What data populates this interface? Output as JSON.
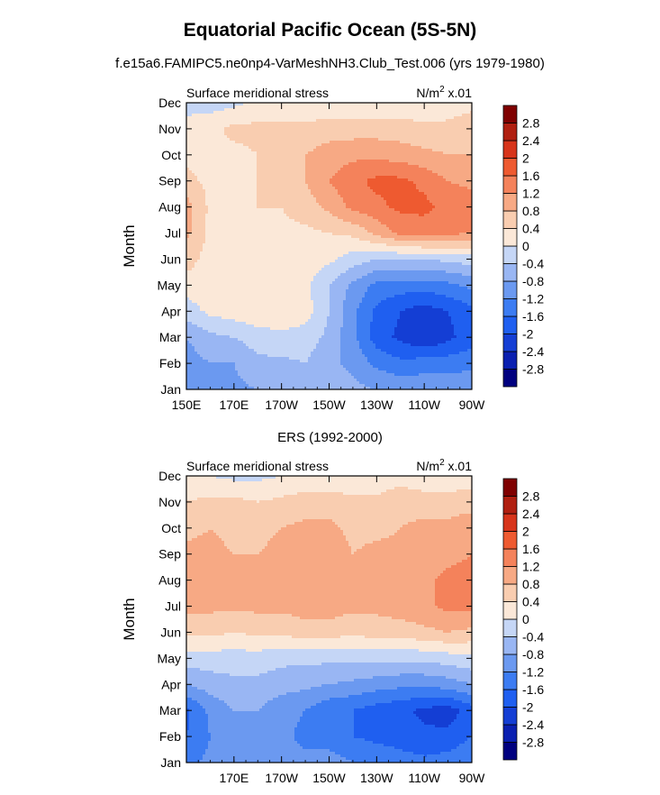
{
  "figure": {
    "title": "Equatorial Pacific Ocean (5S-5N)",
    "subtitle": "f.e15a6.FAMIPC5.ne0np4-VarMeshNH3.Club_Test.006 (yrs 1979-1980)"
  },
  "colorbar": {
    "levels": [
      -2.8,
      -2.4,
      -2,
      -1.6,
      -1.2,
      -0.8,
      -0.4,
      0,
      0.4,
      0.8,
      1.2,
      1.6,
      2,
      2.4,
      2.8
    ],
    "labels": [
      "-2.8",
      "-2.4",
      "-2",
      "-1.6",
      "-1.2",
      "-0.8",
      "-0.4",
      "0",
      "0.4",
      "0.8",
      "1.2",
      "1.6",
      "2",
      "2.4",
      "2.8"
    ],
    "colors": [
      "#00007f",
      "#0a1fb0",
      "#143ed4",
      "#1f5ff0",
      "#3c7cf2",
      "#6b99f0",
      "#99b6f3",
      "#c5d6f6",
      "#fbe8d8",
      "#f9cdb0",
      "#f7a984",
      "#f4825b",
      "#ee5a30",
      "#d7341a",
      "#b01f10",
      "#7f0000"
    ]
  },
  "chart_data": [
    {
      "type": "heatmap",
      "panel_title": "",
      "left_string": "Surface meridional stress",
      "units_base": "N/m",
      "units_exp": "2",
      "units_scale": " x.01",
      "ylabel": "Month",
      "xlim": [
        150,
        270
      ],
      "x": [
        150,
        160,
        170,
        180,
        190,
        200,
        210,
        220,
        230,
        240,
        250,
        260,
        270
      ],
      "x_ticks": [
        150,
        170,
        190,
        210,
        230,
        250,
        270
      ],
      "x_tick_labels": [
        "150E",
        "170E",
        "170W",
        "150W",
        "130W",
        "110W",
        "90W"
      ],
      "y": [
        "Jan",
        "Feb",
        "Mar",
        "Apr",
        "May",
        "Jun",
        "Jul",
        "Aug",
        "Sep",
        "Oct",
        "Nov",
        "Dec"
      ],
      "z": [
        [
          -1.0,
          -1.0,
          -0.9,
          -0.8,
          -0.6,
          -0.4,
          -0.5,
          -0.7,
          -0.8,
          -0.9,
          -0.9,
          -0.9,
          -0.9
        ],
        [
          -1.0,
          -0.8,
          -0.8,
          -0.5,
          -0.5,
          -0.4,
          -0.7,
          -0.9,
          -1.3,
          -1.5,
          -1.4,
          -1.4,
          -1.3
        ],
        [
          -0.8,
          -0.5,
          -0.4,
          -0.2,
          -0.1,
          -0.2,
          -0.5,
          -1.1,
          -1.8,
          -2.1,
          -2.4,
          -2.1,
          -1.8
        ],
        [
          -0.2,
          0.1,
          0.2,
          0.3,
          0.3,
          0.2,
          -0.4,
          -1.1,
          -1.7,
          -2.0,
          -2.2,
          -2.0,
          -1.7
        ],
        [
          0.2,
          0.2,
          0.2,
          0.2,
          0.2,
          0.1,
          -0.4,
          -0.9,
          -1.3,
          -1.4,
          -1.4,
          -1.3,
          -1.1
        ],
        [
          0.6,
          0.2,
          0.2,
          0.2,
          0.2,
          0.2,
          0.1,
          -0.2,
          -0.4,
          -0.4,
          -0.4,
          -0.3,
          -0.2
        ],
        [
          0.9,
          0.3,
          0.3,
          0.3,
          0.3,
          0.3,
          0.4,
          0.5,
          0.9,
          1.3,
          1.4,
          1.3,
          1.2
        ],
        [
          1.0,
          0.3,
          0.3,
          0.4,
          0.4,
          0.6,
          0.9,
          1.3,
          1.5,
          1.7,
          1.7,
          1.5,
          1.4
        ],
        [
          0.5,
          0.3,
          0.3,
          0.4,
          0.5,
          0.8,
          1.2,
          1.5,
          1.7,
          1.7,
          1.5,
          1.2,
          1.1
        ],
        [
          0.3,
          0.3,
          0.3,
          0.4,
          0.6,
          0.8,
          1.0,
          1.1,
          1.1,
          1.0,
          0.9,
          0.8,
          0.8
        ],
        [
          0.2,
          0.3,
          0.5,
          0.5,
          0.5,
          0.5,
          0.6,
          0.6,
          0.6,
          0.6,
          0.5,
          0.5,
          0.6
        ],
        [
          -0.2,
          -0.2,
          -0.1,
          0.1,
          0.1,
          0.1,
          0.1,
          0.1,
          0.1,
          0.1,
          0.1,
          0.2,
          0.3
        ]
      ]
    },
    {
      "type": "heatmap",
      "panel_title": "ERS (1992-2000)",
      "left_string": "Surface meridional stress",
      "units_base": "N/m",
      "units_exp": "2",
      "units_scale": " x.01",
      "ylabel": "Month",
      "xlim": [
        150,
        270
      ],
      "x": [
        150,
        160,
        170,
        180,
        190,
        200,
        210,
        220,
        230,
        240,
        250,
        260,
        270
      ],
      "x_ticks": [
        170,
        190,
        210,
        230,
        250,
        270
      ],
      "x_tick_labels": [
        "170E",
        "170W",
        "150W",
        "130W",
        "110W",
        "90W"
      ],
      "y": [
        "Jan",
        "Feb",
        "Mar",
        "Apr",
        "May",
        "Jun",
        "Jul",
        "Aug",
        "Sep",
        "Oct",
        "Nov",
        "Dec"
      ],
      "z": [
        [
          -1.3,
          -1.1,
          -0.9,
          -0.8,
          -1.0,
          -1.1,
          -1.0,
          -1.2,
          -1.3,
          -1.4,
          -1.5,
          -1.4,
          -1.2
        ],
        [
          -1.6,
          -1.2,
          -1.0,
          -0.9,
          -1.1,
          -1.3,
          -1.4,
          -1.6,
          -1.7,
          -1.8,
          -1.9,
          -1.9,
          -1.6
        ],
        [
          -1.7,
          -1.1,
          -0.8,
          -0.8,
          -1.1,
          -1.2,
          -1.5,
          -1.6,
          -1.8,
          -1.9,
          -2.1,
          -2.2,
          -1.8
        ],
        [
          -0.8,
          -0.6,
          -0.5,
          -0.5,
          -0.6,
          -0.7,
          -0.8,
          -0.9,
          -1.0,
          -1.1,
          -1.1,
          -1.0,
          -0.8
        ],
        [
          -0.2,
          -0.2,
          -0.2,
          -0.2,
          -0.3,
          -0.3,
          -0.3,
          -0.3,
          -0.3,
          -0.3,
          -0.3,
          -0.2,
          -0.1
        ],
        [
          0.5,
          0.5,
          0.4,
          0.5,
          0.5,
          0.6,
          0.6,
          0.5,
          0.6,
          0.6,
          0.7,
          0.8,
          0.7
        ],
        [
          0.9,
          0.9,
          0.9,
          0.9,
          0.9,
          1.0,
          1.0,
          0.9,
          0.9,
          1.0,
          1.1,
          1.3,
          1.3
        ],
        [
          0.9,
          0.9,
          0.9,
          0.9,
          0.9,
          1.0,
          1.0,
          0.8,
          0.9,
          1.0,
          1.1,
          1.3,
          1.3
        ],
        [
          0.9,
          0.9,
          0.8,
          0.8,
          0.9,
          1.0,
          1.0,
          0.8,
          0.9,
          0.9,
          1.0,
          1.1,
          1.2
        ],
        [
          0.7,
          0.8,
          0.7,
          0.7,
          0.8,
          0.9,
          0.9,
          0.7,
          0.7,
          0.8,
          0.9,
          0.9,
          1.1
        ],
        [
          0.4,
          0.5,
          0.5,
          0.4,
          0.5,
          0.6,
          0.6,
          0.5,
          0.5,
          0.7,
          0.6,
          0.6,
          0.6
        ],
        [
          0.1,
          0.0,
          -0.1,
          -0.1,
          0.0,
          0.1,
          0.1,
          0.1,
          0.1,
          0.2,
          0.1,
          0.1,
          0.2
        ]
      ]
    }
  ]
}
